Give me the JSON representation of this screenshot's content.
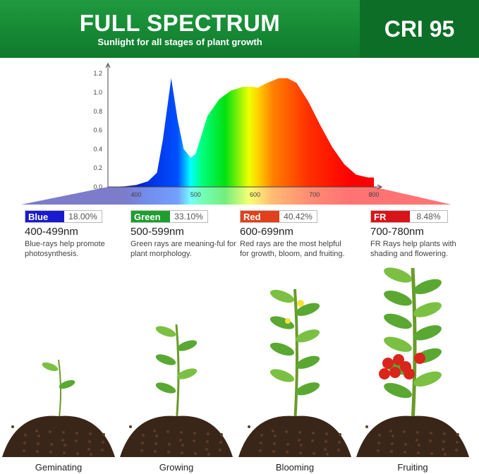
{
  "header": {
    "title": "FULL SPECTRUM",
    "subtitle": "Sunlight for all stages of plant growth",
    "cri": "CRI 95"
  },
  "chart_data": {
    "type": "area",
    "title": "",
    "xlabel": "",
    "ylabel": "",
    "xlim": [
      352,
      810
    ],
    "ylim": [
      0,
      1.25
    ],
    "x_ticks": [
      400,
      500,
      600,
      700,
      800
    ],
    "y_ticks": [
      "0.0",
      "0.2",
      "0.4",
      "0.6",
      "0.8",
      "1.0",
      "1.2"
    ],
    "grid": false,
    "x": [
      352,
      380,
      400,
      420,
      435,
      445,
      459,
      470,
      480,
      492,
      500,
      510,
      520,
      540,
      560,
      580,
      595,
      605,
      620,
      640,
      655,
      670,
      690,
      710,
      730,
      750,
      770,
      790,
      800
    ],
    "values": [
      0,
      0.005,
      0.02,
      0.06,
      0.15,
      0.5,
      1.15,
      0.7,
      0.4,
      0.31,
      0.35,
      0.55,
      0.75,
      0.93,
      1.02,
      1.06,
      1.06,
      1.05,
      1.1,
      1.15,
      1.15,
      1.1,
      0.9,
      0.65,
      0.42,
      0.24,
      0.13,
      0.1,
      0.1
    ]
  },
  "bands": [
    {
      "name": "Blue",
      "percent": "18.00%",
      "range": "400-499nm",
      "desc": "Blue-rays help promote photosynthesis.",
      "color": "#1a1ad0"
    },
    {
      "name": "Green",
      "percent": "33.10%",
      "range": "500-599nm",
      "desc": "Green rays are meaning-ful for plant morphology.",
      "color": "#1e9e2e"
    },
    {
      "name": "Red",
      "percent": "40.42%",
      "range": "600-699nm",
      "desc": "Red rays are the most helpful for growth, bloom, and fruiting.",
      "color": "#e0401a"
    },
    {
      "name": "FR",
      "percent": "8.48%",
      "range": "700-780nm",
      "desc": "FR Rays help plants with shading and flowering.",
      "color": "#d8141a"
    }
  ],
  "stages": [
    "Geminating",
    "Growing",
    "Blooming",
    "Fruiting"
  ]
}
